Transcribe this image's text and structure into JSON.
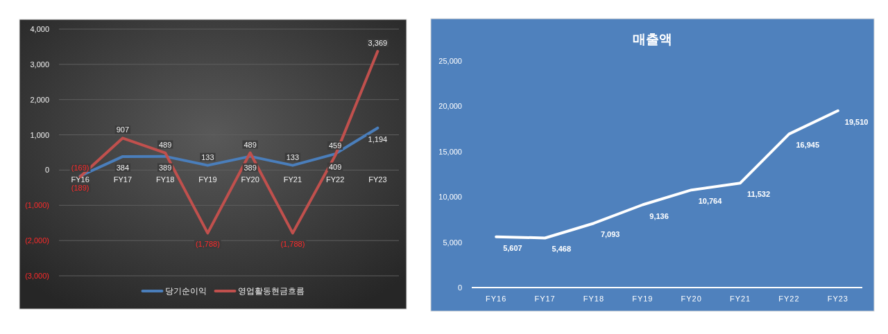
{
  "chart_data": [
    {
      "type": "line",
      "categories": [
        "FY16",
        "FY17",
        "FY18",
        "FY19",
        "FY20",
        "FY21",
        "FY22",
        "FY23"
      ],
      "series": [
        {
          "name": "당기순이익",
          "color": "#4a7ebb",
          "values": [
            -169,
            384,
            389,
            133,
            389,
            133,
            459,
            1194
          ],
          "value_labels": [
            "(169)",
            "384",
            "389",
            "133",
            "389",
            "133",
            "459",
            "1,194"
          ]
        },
        {
          "name": "영업활동현금흐름",
          "color": "#c0504d",
          "values": [
            -189,
            907,
            489,
            -1788,
            489,
            -1788,
            409,
            3369
          ],
          "value_labels": [
            "(189)",
            "907",
            "489",
            "(1,788)",
            "489",
            "(1,788)",
            "409",
            "3,369"
          ]
        }
      ],
      "ylim": [
        -3000,
        4000
      ],
      "yticks": [
        {
          "value": -3000,
          "label": "(3,000)"
        },
        {
          "value": -2000,
          "label": "(2,000)"
        },
        {
          "value": -1000,
          "label": "(1,000)"
        },
        0,
        {
          "value": 1000,
          "label": "1,000"
        },
        {
          "value": 2000,
          "label": "2,000"
        },
        {
          "value": 3000,
          "label": "3,000"
        },
        {
          "value": 4000,
          "label": "4,000"
        }
      ],
      "grid": "y",
      "legend": "bottom"
    },
    {
      "type": "line",
      "title": "매출액",
      "categories": [
        "FY16",
        "FY17",
        "FY18",
        "FY19",
        "FY20",
        "FY21",
        "FY22",
        "FY23"
      ],
      "series": [
        {
          "color": "#ffffff",
          "values": [
            5607,
            5468,
            7093,
            9136,
            10764,
            11532,
            16945,
            19510
          ],
          "value_labels": [
            "5,607",
            "5,468",
            "7,093",
            "9,136",
            "10,764",
            "11,532",
            "16,945",
            "19,510"
          ]
        }
      ],
      "ylim": [
        0,
        25000
      ],
      "yticks": [
        0,
        {
          "value": 5000,
          "label": "5,000"
        },
        {
          "value": 10000,
          "label": "10,000"
        },
        {
          "value": 15000,
          "label": "15,000"
        },
        {
          "value": 20000,
          "label": "20,000"
        },
        {
          "value": 25000,
          "label": "25,000"
        }
      ]
    }
  ]
}
